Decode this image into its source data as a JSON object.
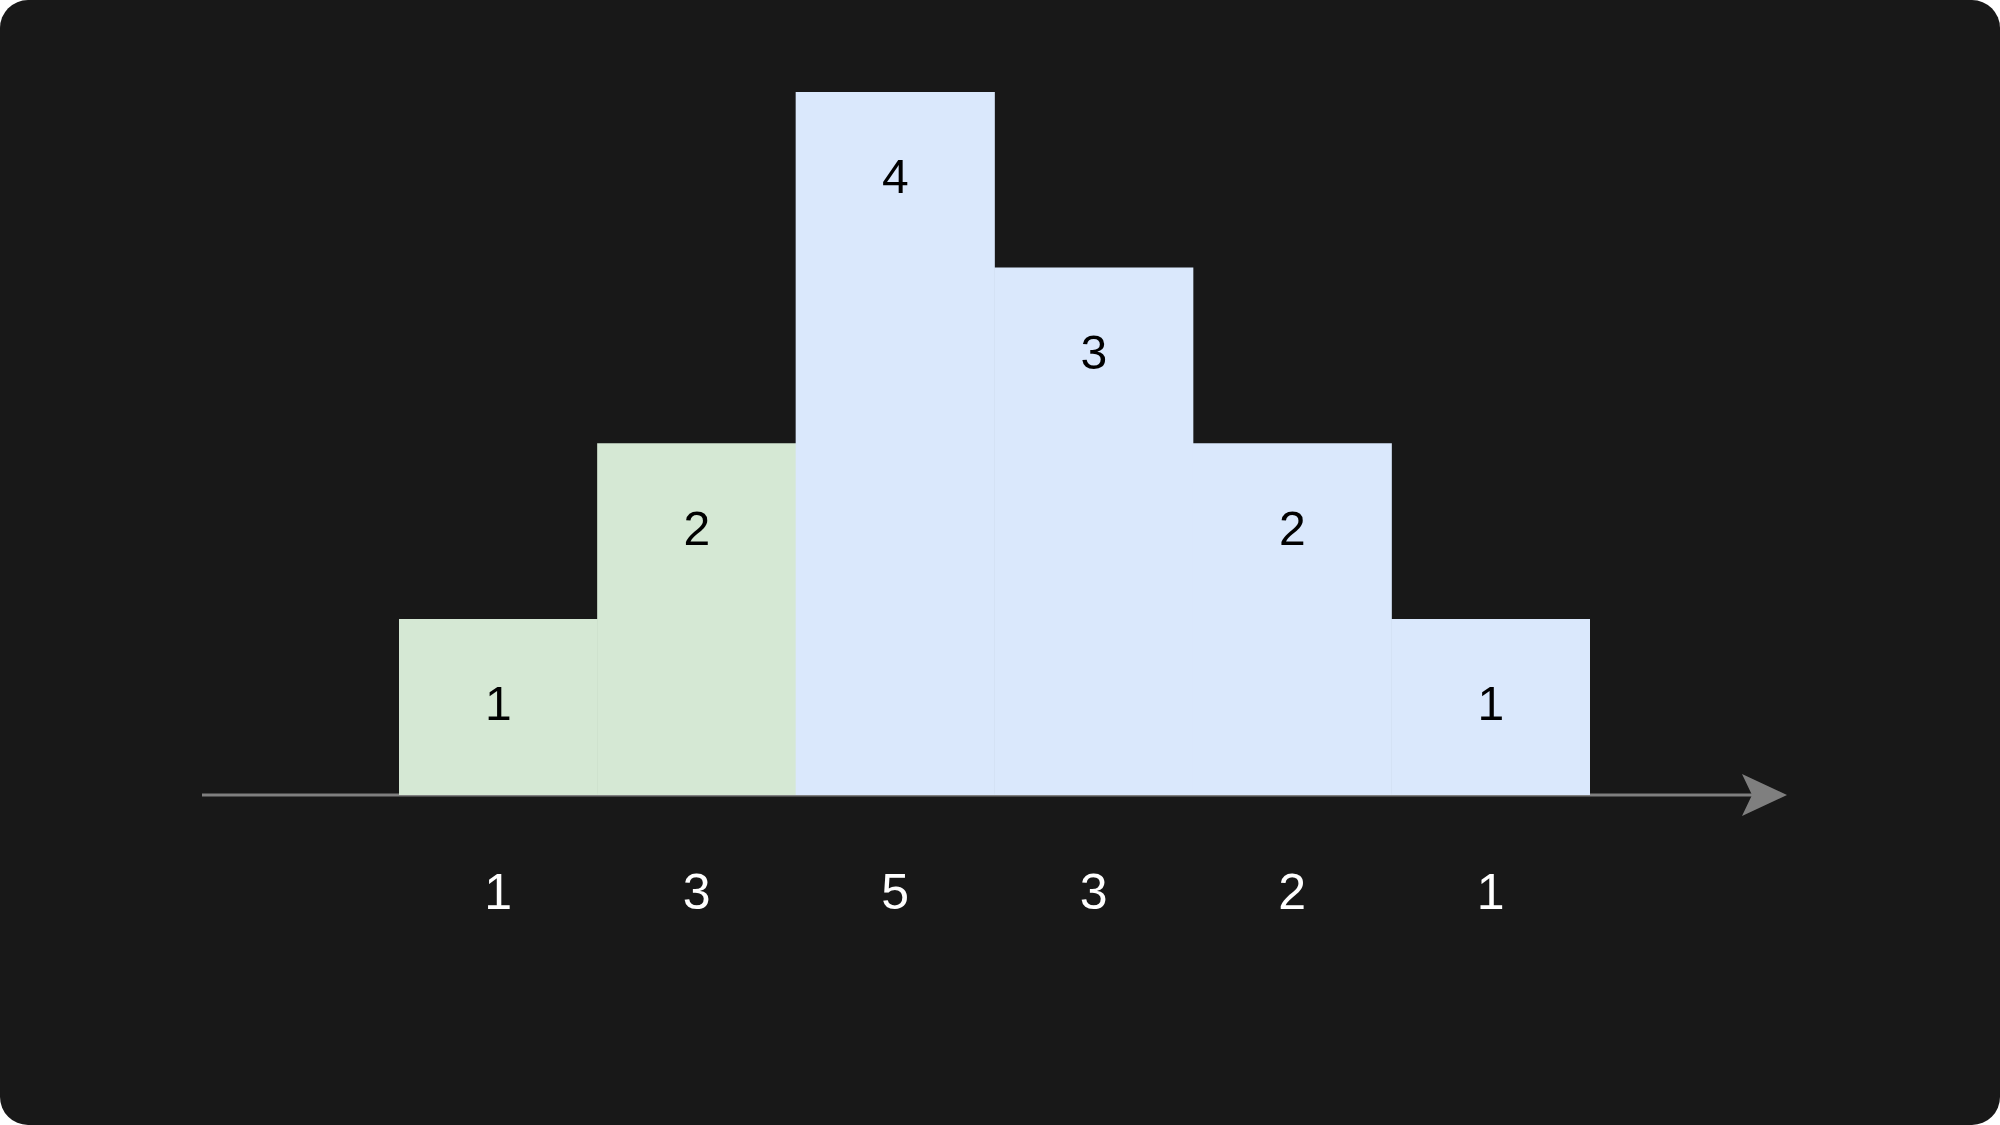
{
  "chart_data": {
    "type": "bar",
    "categories": [
      "1",
      "3",
      "5",
      "3",
      "2",
      "1"
    ],
    "values": [
      1,
      2,
      4,
      3,
      2,
      1
    ],
    "colors": [
      "#d5e8d4",
      "#d5e8d4",
      "#dae8fc",
      "#dae8fc",
      "#dae8fc",
      "#dae8fc"
    ],
    "data_labels": true,
    "tick_labels": "x",
    "legend": false
  }
}
